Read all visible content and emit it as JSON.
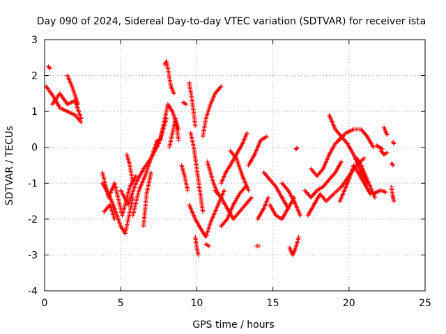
{
  "chart_data": {
    "type": "scatter",
    "title": "Day 090 of 2024, Sidereal Day-to-day VTEC variation (SDTVAR) for receiver ista",
    "xlabel": "GPS time / hours",
    "ylabel": "SDTVAR / TECUs",
    "xlim": [
      0,
      25
    ],
    "ylim": [
      -4,
      3
    ],
    "xticks": [
      "0",
      "5",
      "10",
      "15",
      "20",
      "25"
    ],
    "yticks": [
      "-4",
      "-3",
      "-2",
      "-1",
      "0",
      "1",
      "2",
      "3"
    ],
    "grid": true,
    "marker": "+",
    "color": "#ff0000",
    "tracks": [
      {
        "x": [
          0.1,
          0.6,
          1.0,
          1.5,
          2.0,
          2.4
        ],
        "y": [
          1.7,
          1.4,
          1.1,
          1.0,
          0.9,
          0.7
        ]
      },
      {
        "x": [
          0.5,
          1.0,
          1.5,
          2.0,
          2.4
        ],
        "y": [
          1.2,
          1.5,
          1.2,
          1.3,
          0.8
        ]
      },
      {
        "x": [
          1.5,
          1.8,
          2.2
        ],
        "y": [
          2.0,
          1.7,
          1.2
        ]
      },
      {
        "x": [
          0.25,
          0.35
        ],
        "y": [
          2.25,
          2.2
        ]
      },
      {
        "x": [
          3.8,
          4.2,
          4.6,
          5.0,
          5.3,
          5.8
        ],
        "y": [
          -1.0,
          -1.3,
          -1.7,
          -2.2,
          -2.4,
          -1.4
        ]
      },
      {
        "x": [
          3.8,
          4.2,
          4.6,
          5.1,
          5.6,
          6.0
        ],
        "y": [
          -0.7,
          -1.4,
          -1.0,
          -1.9,
          -1.1,
          -0.8
        ]
      },
      {
        "x": [
          3.9,
          4.3,
          4.6
        ],
        "y": [
          -1.8,
          -1.6,
          -2.0
        ]
      },
      {
        "x": [
          5.0,
          5.5,
          6.0,
          6.5,
          7.0,
          7.5,
          8.0
        ],
        "y": [
          -1.2,
          -1.6,
          -1.0,
          -0.6,
          -0.3,
          0.1,
          0.8
        ]
      },
      {
        "x": [
          5.8,
          6.2,
          6.6,
          7.0,
          7.4
        ],
        "y": [
          -1.9,
          -1.2,
          -0.8,
          -0.3,
          0.2
        ]
      },
      {
        "x": [
          5.4,
          5.6,
          5.8
        ],
        "y": [
          -0.2,
          -0.5,
          -1.0
        ]
      },
      {
        "x": [
          6.5,
          6.7,
          7.0
        ],
        "y": [
          -2.2,
          -1.3,
          -0.7
        ]
      },
      {
        "x": [
          7.6,
          7.9,
          8.1,
          8.4,
          8.8
        ],
        "y": [
          0.2,
          0.8,
          1.2,
          1.0,
          0.5
        ]
      },
      {
        "x": [
          7.9,
          8.0,
          8.1,
          8.3,
          8.5
        ],
        "y": [
          2.3,
          2.4,
          2.2,
          1.7,
          1.5
        ]
      },
      {
        "x": [
          8.2,
          8.4,
          8.6,
          8.8
        ],
        "y": [
          0.0,
          0.4,
          0.8,
          0.2
        ]
      },
      {
        "x": [
          9.1,
          9.3
        ],
        "y": [
          1.25,
          1.2
        ]
      },
      {
        "x": [
          9.0,
          9.2,
          9.4
        ],
        "y": [
          -0.5,
          -0.8,
          -1.2
        ]
      },
      {
        "x": [
          9.5,
          9.7,
          9.9
        ],
        "y": [
          1.8,
          1.3,
          0.6
        ]
      },
      {
        "x": [
          9.5,
          9.9,
          10.3,
          10.6,
          10.9,
          11.2,
          11.5,
          11.8
        ],
        "y": [
          -1.6,
          -2.0,
          -2.3,
          -2.5,
          -2.1,
          -1.8,
          -1.5,
          -1.2
        ]
      },
      {
        "x": [
          9.6,
          9.8,
          10.0,
          10.2,
          10.4
        ],
        "y": [
          0.4,
          0.0,
          -0.6,
          -1.2,
          -1.8
        ]
      },
      {
        "x": [
          9.9,
          10.0,
          10.1
        ],
        "y": [
          -2.5,
          -2.8,
          -3.0
        ]
      },
      {
        "x": [
          10.6,
          10.8
        ],
        "y": [
          -2.7,
          -2.75
        ]
      },
      {
        "x": [
          10.4,
          10.6,
          10.9,
          11.2,
          11.6
        ],
        "y": [
          0.3,
          0.8,
          1.2,
          1.5,
          1.7
        ]
      },
      {
        "x": [
          10.7,
          10.9,
          11.1,
          11.4
        ],
        "y": [
          -0.4,
          -0.7,
          -1.0,
          -1.3
        ]
      },
      {
        "x": [
          11.6,
          11.9,
          12.2,
          12.6,
          13.0,
          13.3
        ],
        "y": [
          -1.0,
          -0.7,
          -0.5,
          -0.2,
          0.1,
          0.4
        ]
      },
      {
        "x": [
          11.2,
          11.6,
          12.0,
          12.4,
          12.8,
          13.2,
          13.6
        ],
        "y": [
          -1.2,
          -1.4,
          -1.7,
          -2.0,
          -1.8,
          -1.6,
          -1.4
        ]
      },
      {
        "x": [
          11.6,
          12.0,
          12.4,
          12.8,
          13.2
        ],
        "y": [
          -2.2,
          -2.0,
          -1.6,
          -1.3,
          -1.1
        ]
      },
      {
        "x": [
          12.2,
          12.6,
          13.0,
          13.4
        ],
        "y": [
          -0.1,
          -0.3,
          -0.8,
          -1.2
        ]
      },
      {
        "x": [
          13.4,
          13.8,
          14.2,
          14.6
        ],
        "y": [
          -0.5,
          -0.2,
          0.2,
          0.3
        ]
      },
      {
        "x": [
          13.9,
          14.1
        ],
        "y": [
          -2.75,
          -2.75
        ]
      },
      {
        "x": [
          14.0,
          14.4,
          14.7
        ],
        "y": [
          -2.0,
          -1.7,
          -1.4
        ]
      },
      {
        "x": [
          14.4,
          14.8,
          15.2,
          15.6,
          16.0
        ],
        "y": [
          -0.7,
          -0.9,
          -1.1,
          -1.4,
          -1.7
        ]
      },
      {
        "x": [
          14.8,
          15.2,
          15.6,
          16.0,
          16.4
        ],
        "y": [
          -1.6,
          -1.9,
          -2.0,
          -1.7,
          -1.4
        ]
      },
      {
        "x": [
          15.6,
          16.0,
          16.4,
          16.8
        ],
        "y": [
          -1.0,
          -1.2,
          -1.5,
          -1.9
        ]
      },
      {
        "x": [
          16.1,
          16.3,
          16.5,
          16.7
        ],
        "y": [
          -2.8,
          -3.0,
          -2.8,
          -2.5
        ]
      },
      {
        "x": [
          16.5,
          16.6
        ],
        "y": [
          -0.05,
          -0.02
        ]
      },
      {
        "x": [
          17.1,
          17.5,
          17.9,
          18.3,
          18.7,
          19.1,
          19.5
        ],
        "y": [
          -1.2,
          -1.4,
          -1.2,
          -1.1,
          -0.9,
          -0.7,
          -0.4
        ]
      },
      {
        "x": [
          17.3,
          17.7,
          18.1,
          18.5,
          19.0,
          19.5,
          20.0,
          20.5,
          21.0
        ],
        "y": [
          -1.9,
          -1.6,
          -1.3,
          -1.5,
          -1.3,
          -1.1,
          -0.8,
          -0.5,
          -0.3
        ]
      },
      {
        "x": [
          17.5,
          17.9,
          18.3,
          18.7,
          19.1,
          19.6
        ],
        "y": [
          -0.6,
          -0.8,
          -0.6,
          -0.2,
          0.1,
          0.3
        ]
      },
      {
        "x": [
          18.7,
          19.1,
          19.5,
          19.9,
          20.3,
          20.7,
          21.2
        ],
        "y": [
          0.9,
          0.5,
          0.3,
          0.1,
          -0.2,
          -0.6,
          -1.0
        ]
      },
      {
        "x": [
          19.3,
          19.8,
          20.3,
          20.8,
          21.2,
          21.6
        ],
        "y": [
          0.2,
          0.4,
          0.5,
          0.5,
          0.3,
          0.0
        ]
      },
      {
        "x": [
          19.4,
          19.7,
          20.0,
          20.3,
          20.6,
          21.0,
          21.4
        ],
        "y": [
          -1.5,
          -1.2,
          -0.9,
          -0.5,
          -0.7,
          -1.0,
          -1.3
        ]
      },
      {
        "x": [
          20.5,
          20.8,
          21.1,
          21.4,
          21.7
        ],
        "y": [
          -0.3,
          -0.5,
          -0.8,
          -1.1,
          -1.4
        ]
      },
      {
        "x": [
          21.8,
          22.0,
          22.2
        ],
        "y": [
          0.05,
          0.0,
          -0.05
        ]
      },
      {
        "x": [
          21.6,
          21.8,
          22.1,
          22.4
        ],
        "y": [
          -1.3,
          -1.25,
          -1.2,
          -1.25
        ]
      },
      {
        "x": [
          22.3,
          22.5
        ],
        "y": [
          0.55,
          0.35
        ]
      },
      {
        "x": [
          22.1,
          22.3,
          22.5
        ],
        "y": [
          -0.1,
          -0.2,
          -0.15
        ]
      },
      {
        "x": [
          22.9,
          22.95
        ],
        "y": [
          0.15,
          0.1
        ]
      },
      {
        "x": [
          22.8,
          22.9
        ],
        "y": [
          -0.45,
          -0.5
        ]
      },
      {
        "x": [
          22.8,
          22.85,
          22.9,
          22.95
        ],
        "y": [
          -1.1,
          -1.3,
          -1.4,
          -1.5
        ]
      }
    ]
  }
}
